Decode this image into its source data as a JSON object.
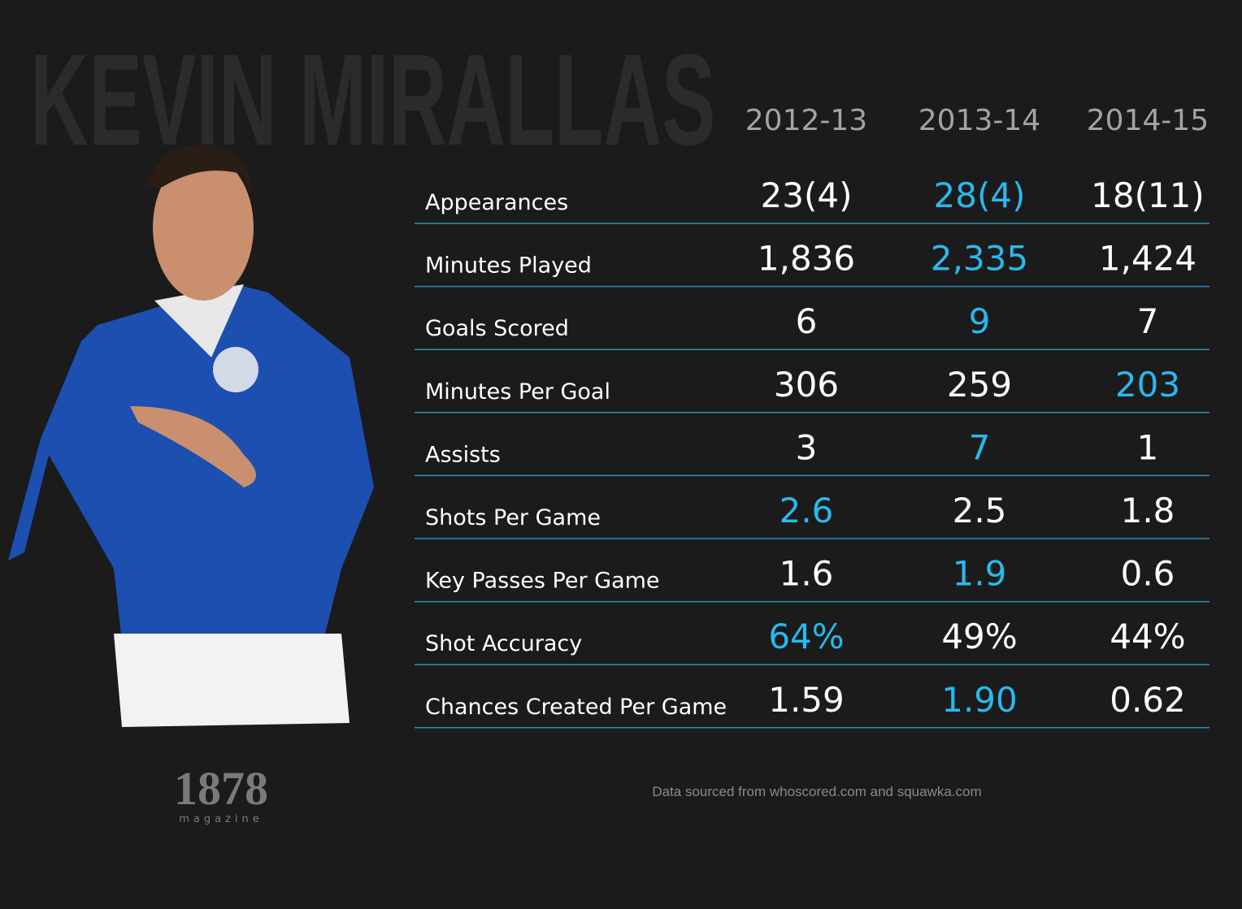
{
  "title": "KEVIN MIRALLAS",
  "seasons": [
    "2012-13",
    "2013-14",
    "2014-15"
  ],
  "highlight_color": "#29b9ec",
  "rows": [
    {
      "label": "Appearances",
      "values": [
        "23(4)",
        "28(4)",
        "18(11)"
      ],
      "highlight": 1
    },
    {
      "label": "Minutes Played",
      "values": [
        "1,836",
        "2,335",
        "1,424"
      ],
      "highlight": 1
    },
    {
      "label": "Goals Scored",
      "values": [
        "6",
        "9",
        "7"
      ],
      "highlight": 1
    },
    {
      "label": "Minutes Per Goal",
      "values": [
        "306",
        "259",
        "203"
      ],
      "highlight": 2
    },
    {
      "label": "Assists",
      "values": [
        "3",
        "7",
        "1"
      ],
      "highlight": 1
    },
    {
      "label": "Shots Per Game",
      "values": [
        "2.6",
        "2.5",
        "1.8"
      ],
      "highlight": 0
    },
    {
      "label": "Key Passes Per Game",
      "values": [
        "1.6",
        "1.9",
        "0.6"
      ],
      "highlight": 1
    },
    {
      "label": "Shot Accuracy",
      "values": [
        "64%",
        "49%",
        "44%"
      ],
      "highlight": 0
    },
    {
      "label": "Chances Created Per Game",
      "values": [
        "1.59",
        "1.90",
        "0.62"
      ],
      "highlight": 1
    }
  ],
  "logo": {
    "number": "1878",
    "word": "magazine"
  },
  "source": "Data sourced from whoscored.com and squawka.com"
}
